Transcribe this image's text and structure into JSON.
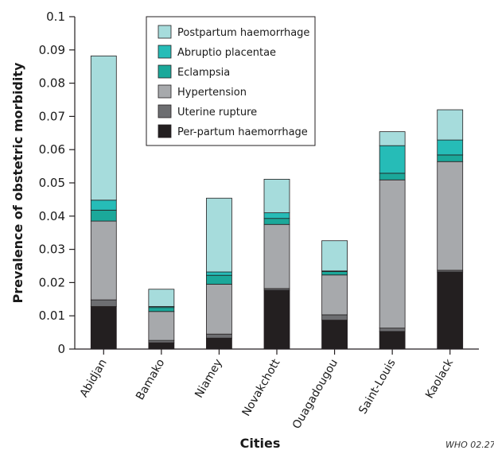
{
  "chart_data": {
    "type": "bar",
    "stacked": true,
    "xlabel": "Cities",
    "ylabel": "Prevalence of obstetric morbidity",
    "ylim": [
      0,
      0.1
    ],
    "yticks": [
      "0",
      "0.01",
      "0.02",
      "0.03",
      "0.04",
      "0.05",
      "0.06",
      "0.07",
      "0.08",
      "0.09",
      "0.1"
    ],
    "ytick_values": [
      0,
      0.01,
      0.02,
      0.03,
      0.04,
      0.05,
      0.06,
      0.07,
      0.08,
      0.09,
      0.1
    ],
    "grid": false,
    "legend_position": "top-center",
    "categories": [
      "Abidjan",
      "Bamako",
      "Niamey",
      "Novakchott",
      "Ouagadougou",
      "Saint-Louis",
      "Kaolack"
    ],
    "series": [
      {
        "name": "Per-partum haemorrhage",
        "color": "#231f20",
        "values": [
          0.0128,
          0.0019,
          0.0033,
          0.0177,
          0.0087,
          0.0053,
          0.0232
        ]
      },
      {
        "name": "Uterine rupture",
        "color": "#6d6e71",
        "values": [
          0.002,
          0.0007,
          0.0012,
          0.0005,
          0.0016,
          0.001,
          0.0005
        ]
      },
      {
        "name": "Hypertension",
        "color": "#a7a9ac",
        "values": [
          0.0237,
          0.0087,
          0.015,
          0.0193,
          0.012,
          0.0446,
          0.0327
        ]
      },
      {
        "name": "Eclampsia",
        "color": "#1ba89a",
        "values": [
          0.0033,
          0.0012,
          0.0027,
          0.0018,
          0.001,
          0.002,
          0.002
        ]
      },
      {
        "name": "Abruptio placentae",
        "color": "#26bcb7",
        "values": [
          0.003,
          0.0003,
          0.001,
          0.0017,
          0.0002,
          0.0083,
          0.0045
        ]
      },
      {
        "name": "Postpartum haemorrhage",
        "color": "#a6dcdc",
        "values": [
          0.0434,
          0.0052,
          0.0222,
          0.0101,
          0.0091,
          0.0042,
          0.0091
        ]
      }
    ],
    "legend_order": [
      "Postpartum haemorrhage",
      "Abruptio placentae",
      "Eclampsia",
      "Hypertension",
      "Uterine rupture",
      "Per-partum haemorrhage"
    ]
  },
  "credit": "WHO 02.27"
}
